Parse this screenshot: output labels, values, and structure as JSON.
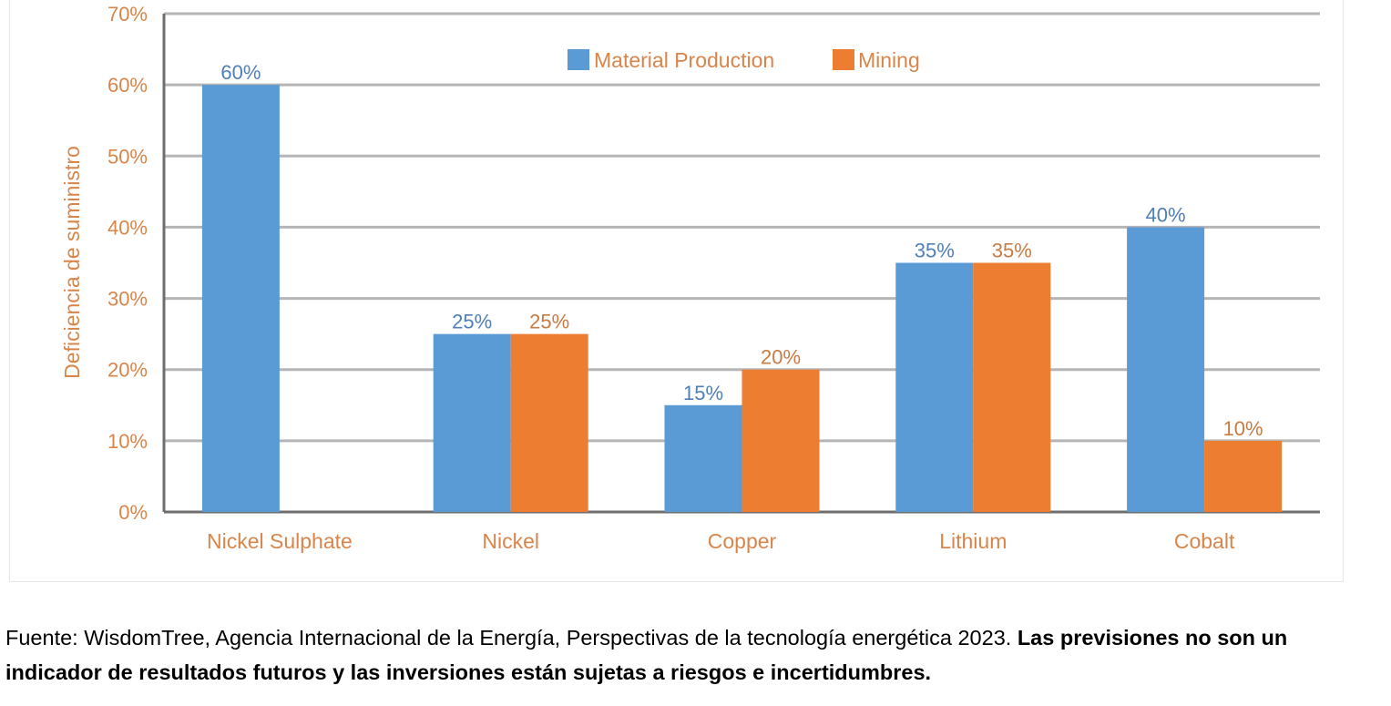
{
  "chart_data": {
    "type": "bar",
    "title": "",
    "xlabel": "",
    "ylabel": "Deficiencia de suministro",
    "ylim": [
      0,
      70
    ],
    "yticks": [
      "0%",
      "10%",
      "20%",
      "30%",
      "40%",
      "50%",
      "60%",
      "70%"
    ],
    "categories": [
      "Nickel Sulphate",
      "Nickel",
      "Copper",
      "Lithium",
      "Cobalt"
    ],
    "series": [
      {
        "name": "Material Production",
        "color": "#5b9bd5",
        "values": [
          60,
          25,
          15,
          35,
          40
        ],
        "labels": [
          "60%",
          "25%",
          "15%",
          "35%",
          "40%"
        ]
      },
      {
        "name": "Mining",
        "color": "#ed7d31",
        "values": [
          null,
          25,
          20,
          35,
          10
        ],
        "labels": [
          "",
          "25%",
          "20%",
          "35%",
          "10%"
        ]
      }
    ],
    "legend": "top-center",
    "grid": true
  },
  "colors": {
    "axis_text": "#d9854a",
    "data_label_blue": "#4f7fb5",
    "data_label_orange": "#c87a43",
    "gridline": "#b5b5b5",
    "axis_line": "#6e6e6e"
  },
  "caption": {
    "normal": "Fuente: WisdomTree, Agencia Internacional de la Energía, Perspectivas de la tecnología energética 2023. ",
    "bold": "Las previsiones no son un indicador de resultados futuros y las inversiones están sujetas a riesgos e incertidumbres."
  }
}
